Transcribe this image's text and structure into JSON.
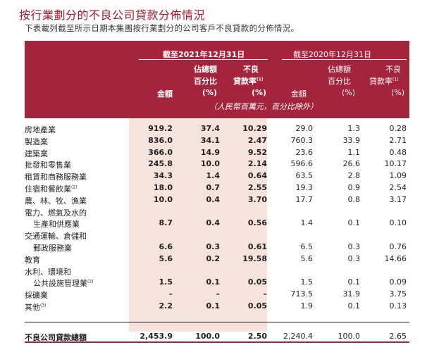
{
  "title": "按行業劃分的不良公司貸款分佈情況",
  "subtitle": "下表載列截至所示日期本集團按行業劃分的公司客戶不良貸款的分佈情況。",
  "header": {
    "period_current": "截至2021年12月31日",
    "period_previous": "截至2020年12月31日",
    "col_amount": "金額",
    "col_share_l1": "佔總額",
    "col_share_l2": "百分比",
    "col_share_l3": "(%)",
    "col_npl_l1": "不良",
    "col_npl_l2": "貸款率",
    "col_npl_note": "(1)",
    "col_npl_l3": "(%)",
    "units": "（人民幣百萬元，百分比除外）"
  },
  "rows": [
    {
      "label": "房地產業",
      "c_amt": "919.2",
      "c_pct": "37.4",
      "c_npl": "10.29",
      "p_amt": "29.0",
      "p_pct": "1.3",
      "p_npl": "0.28"
    },
    {
      "label": "製造業",
      "c_amt": "836.0",
      "c_pct": "34.1",
      "c_npl": "2.47",
      "p_amt": "760.3",
      "p_pct": "33.9",
      "p_npl": "2.71"
    },
    {
      "label": "建築業",
      "c_amt": "366.0",
      "c_pct": "14.9",
      "c_npl": "9.52",
      "p_amt": "23.6",
      "p_pct": "1.1",
      "p_npl": "0.48"
    },
    {
      "label": "批發和零售業",
      "c_amt": "245.8",
      "c_pct": "10.0",
      "c_npl": "2.14",
      "p_amt": "596.6",
      "p_pct": "26.6",
      "p_npl": "10.17"
    },
    {
      "label": "租賃和商務服務業",
      "c_amt": "34.3",
      "c_pct": "1.4",
      "c_npl": "0.64",
      "p_amt": "63.5",
      "p_pct": "2.8",
      "p_npl": "1.09"
    },
    {
      "label": "住宿和餐飲業",
      "note": "(2)",
      "c_amt": "18.0",
      "c_pct": "0.7",
      "c_npl": "2.55",
      "p_amt": "19.3",
      "p_pct": "0.9",
      "p_npl": "2.54"
    },
    {
      "label": "農、林、牧、漁業",
      "c_amt": "10.0",
      "c_pct": "0.4",
      "c_npl": "3.70",
      "p_amt": "17.7",
      "p_pct": "0.8",
      "p_npl": "3.17"
    },
    {
      "label": "電力、燃氣及水的",
      "label2": "生產和供應業",
      "c_amt": "8.7",
      "c_pct": "0.4",
      "c_npl": "0.56",
      "p_amt": "1.4",
      "p_pct": "0.1",
      "p_npl": "0.10"
    },
    {
      "label": "交通運輸、倉儲和",
      "label2": "郵政服務業",
      "c_amt": "6.6",
      "c_pct": "0.3",
      "c_npl": "0.61",
      "p_amt": "6.5",
      "p_pct": "0.3",
      "p_npl": "0.76"
    },
    {
      "label": "教育",
      "c_amt": "5.6",
      "c_pct": "0.2",
      "c_npl": "19.58",
      "p_amt": "5.6",
      "p_pct": "0.3",
      "p_npl": "14.66"
    },
    {
      "label": "水利、環境和",
      "label2": "公共設施管理業",
      "note2": "(2)",
      "c_amt": "1.5",
      "c_pct": "0.1",
      "c_npl": "0.05",
      "p_amt": "1.5",
      "p_pct": "0.1",
      "p_npl": "0.09"
    },
    {
      "label": "採礦業",
      "c_amt": "–",
      "c_pct": "–",
      "c_npl": "–",
      "p_amt": "713.5",
      "p_pct": "31.9",
      "p_npl": "3.75"
    },
    {
      "label": "其他",
      "note": "(3)",
      "c_amt": "2.2",
      "c_pct": "0.1",
      "c_npl": "0.05",
      "p_amt": "1.9",
      "p_pct": "0.1",
      "p_npl": "0.13"
    }
  ],
  "total": {
    "label": "不良公司貸款總額",
    "c_amt": "2,453.9",
    "c_pct": "100.0",
    "c_npl": "2.50",
    "p_amt": "2,240.4",
    "p_pct": "100.0",
    "p_npl": "2.65"
  }
}
